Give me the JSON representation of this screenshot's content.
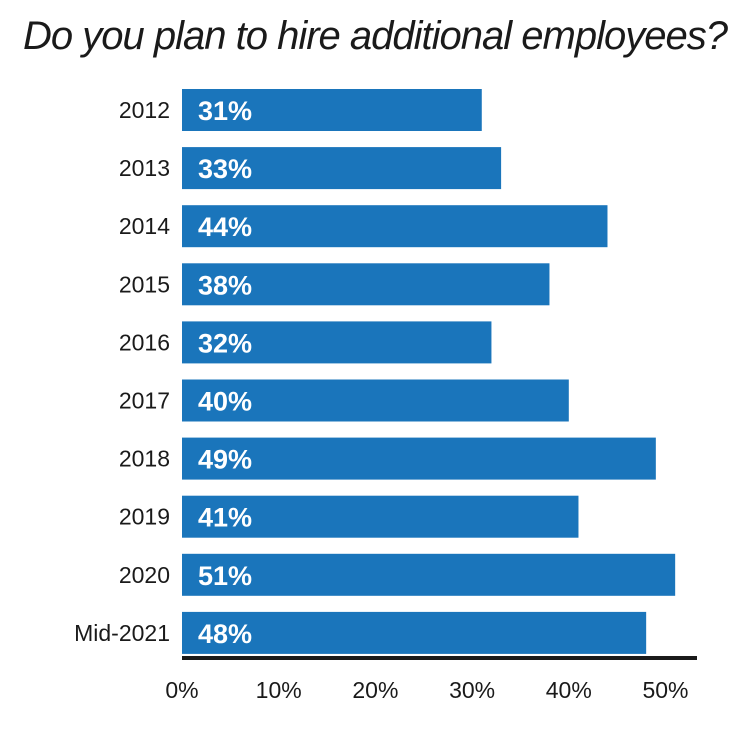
{
  "chart_data": {
    "type": "bar",
    "orientation": "horizontal",
    "title": "Do you plan to hire additional employees?",
    "categories": [
      "2012",
      "2013",
      "2014",
      "2015",
      "2016",
      "2017",
      "2018",
      "2019",
      "2020",
      "Mid-2021"
    ],
    "values": [
      31,
      33,
      44,
      38,
      32,
      40,
      49,
      41,
      51,
      48
    ],
    "data_labels": [
      "31%",
      "33%",
      "44%",
      "38%",
      "32%",
      "40%",
      "49%",
      "41%",
      "51%",
      "48%"
    ],
    "x_ticks": [
      "0%",
      "10%",
      "20%",
      "30%",
      "40%",
      "50%"
    ],
    "x_tick_values": [
      0,
      10,
      20,
      30,
      40,
      50
    ],
    "xlim": [
      0,
      53
    ],
    "xlabel": "",
    "ylabel": "",
    "grid": false,
    "legend": "none",
    "bar_color": "#1a75bb",
    "axis_color": "#1a1a1a"
  }
}
